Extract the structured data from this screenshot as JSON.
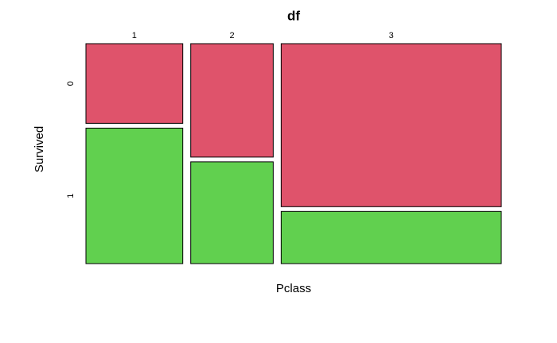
{
  "chart_data": {
    "type": "mosaic",
    "title": "df",
    "x_label": "Pclass",
    "y_label": "Survived",
    "categories": [
      "1",
      "2",
      "3"
    ],
    "series": [
      {
        "name": "0",
        "color": "#df536b",
        "values": [
          80,
          97,
          372
        ]
      },
      {
        "name": "1",
        "color": "#61d04f",
        "values": [
          136,
          87,
          119
        ]
      }
    ]
  }
}
